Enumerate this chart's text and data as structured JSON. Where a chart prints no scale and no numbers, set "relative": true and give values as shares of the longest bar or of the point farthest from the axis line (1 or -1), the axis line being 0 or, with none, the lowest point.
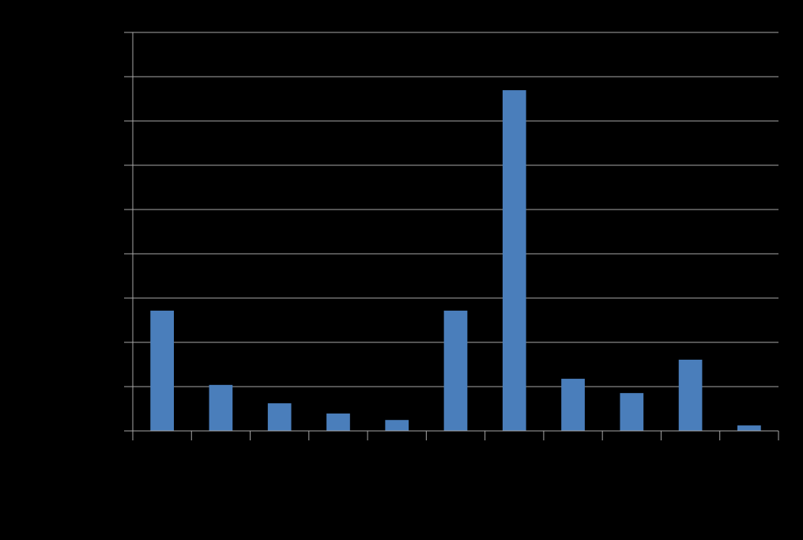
{
  "chart_data": {
    "type": "bar",
    "relative": true,
    "categories": [
      null,
      null,
      null,
      null,
      null,
      null,
      null,
      null,
      null,
      null,
      null
    ],
    "values": [
      0.353,
      0.135,
      0.081,
      0.051,
      0.032,
      0.353,
      1,
      0.153,
      0.111,
      0.209,
      0.016
    ],
    "color": "#4a7ebb",
    "grid": true
  }
}
